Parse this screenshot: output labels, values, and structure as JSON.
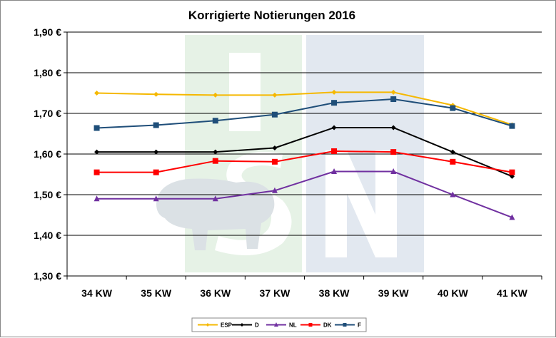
{
  "chart_data": {
    "type": "line",
    "title": "Korrigierte Notierungen 2016",
    "xlabel": "",
    "ylabel": "",
    "categories": [
      "34 KW",
      "35 KW",
      "36 KW",
      "37 KW",
      "38 KW",
      "39 KW",
      "40 KW",
      "41 KW"
    ],
    "ylim": [
      1.3,
      1.9
    ],
    "yticks": [
      1.3,
      1.4,
      1.5,
      1.6,
      1.7,
      1.8,
      1.9
    ],
    "ytick_labels": [
      "1,30 €",
      "1,40 €",
      "1,50 €",
      "1,60 €",
      "1,70 €",
      "1,80 €",
      "1,90 €"
    ],
    "grid": "horizontal",
    "legend_position": "bottom",
    "series": [
      {
        "name": "ESP",
        "color": "#f5b800",
        "marker": "diamond",
        "values": [
          1.75,
          1.747,
          1.745,
          1.745,
          1.752,
          1.752,
          1.72,
          1.672
        ]
      },
      {
        "name": "D",
        "color": "#000000",
        "marker": "diamond",
        "values": [
          1.605,
          1.605,
          1.605,
          1.615,
          1.665,
          1.665,
          1.605,
          1.545
        ]
      },
      {
        "name": "NL",
        "color": "#7030a0",
        "marker": "triangle",
        "values": [
          1.49,
          1.49,
          1.49,
          1.51,
          1.557,
          1.557,
          1.5,
          1.444
        ]
      },
      {
        "name": "DK",
        "color": "#ff0000",
        "marker": "square",
        "values": [
          1.555,
          1.555,
          1.583,
          1.581,
          1.607,
          1.605,
          1.581,
          1.555
        ]
      },
      {
        "name": "F",
        "color": "#1f4e79",
        "marker": "square",
        "values": [
          1.664,
          1.671,
          1.682,
          1.697,
          1.726,
          1.735,
          1.713,
          1.669
        ]
      }
    ]
  }
}
